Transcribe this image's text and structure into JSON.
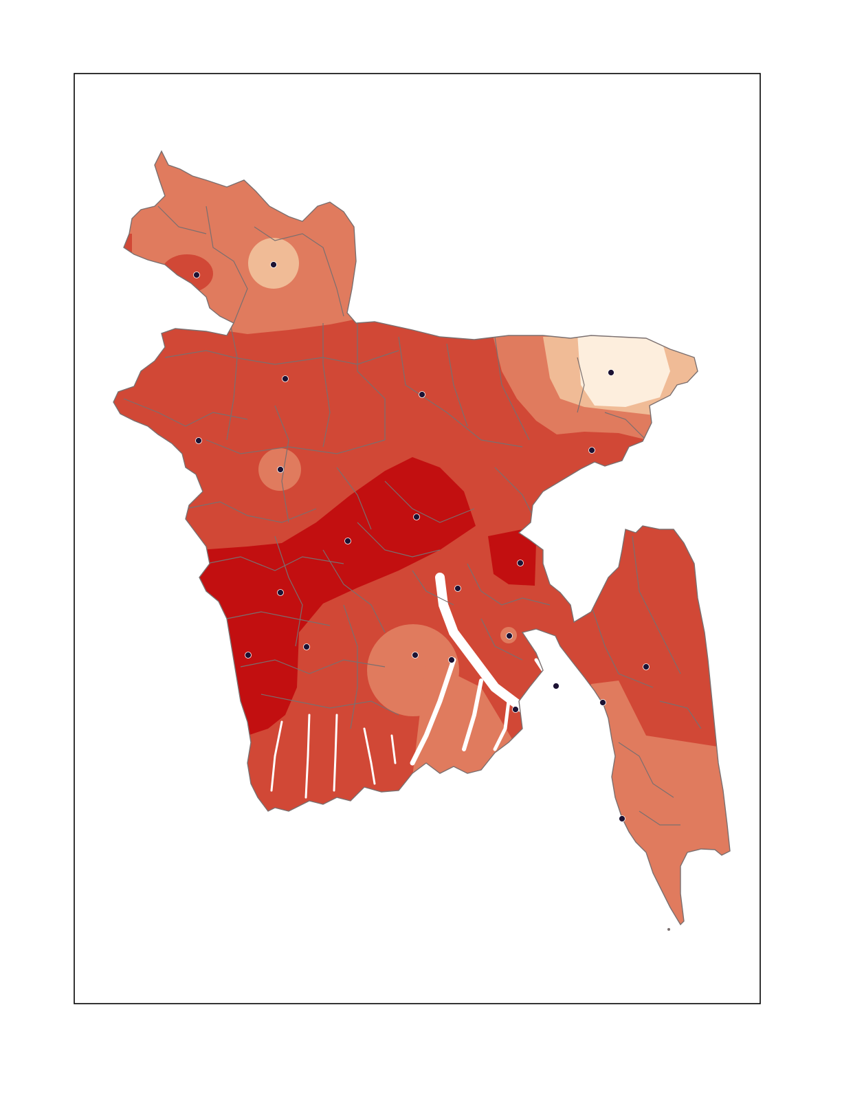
{
  "map": {
    "colors": {
      "class_1": "#fdeedd",
      "class_2": "#f0bb96",
      "class_3": "#e07b5e",
      "class_4": "#d14836",
      "class_5": "#c20f10",
      "boundary": "#7a6f6f",
      "frame": "#000000",
      "station": "#1c1233"
    },
    "stations_count_note": ""
  }
}
